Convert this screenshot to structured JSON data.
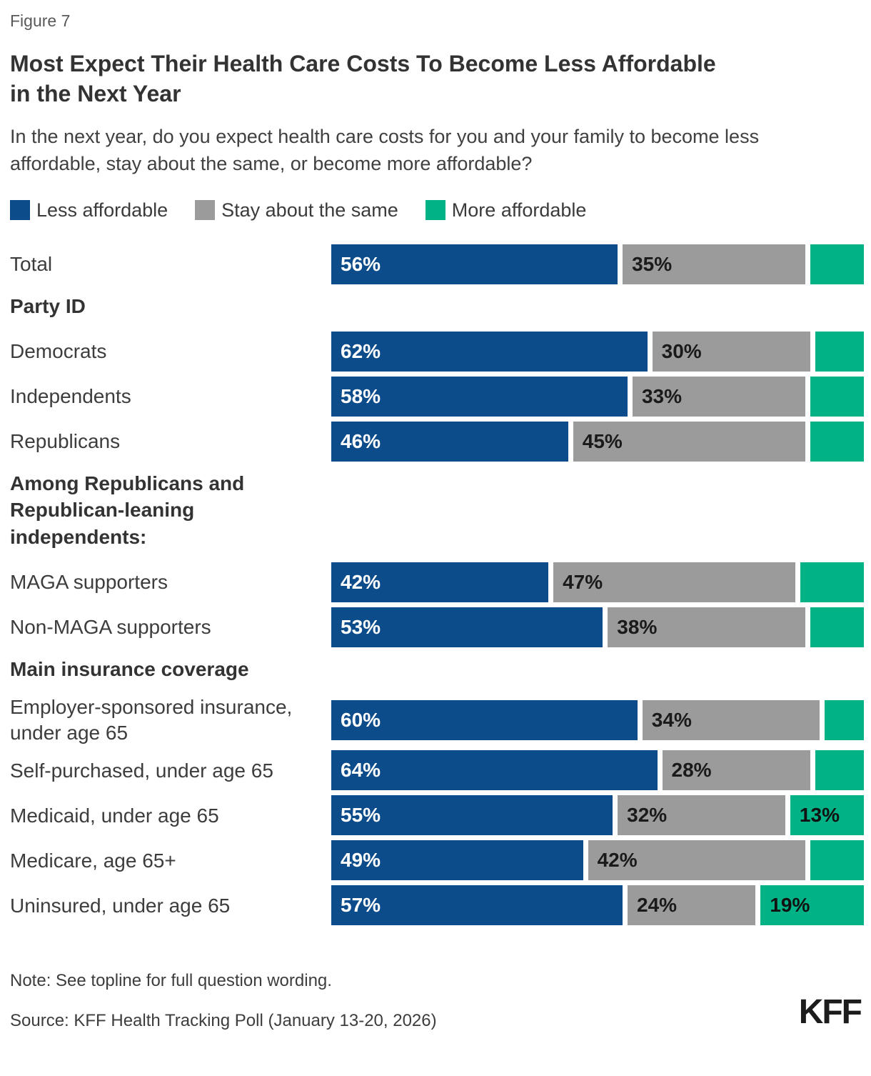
{
  "figure_label": "Figure 7",
  "title": "Most Expect Their Health Care Costs To Become Less Affordable in the Next Year",
  "subtitle": "In the next year, do you expect health care costs for you and your family to become less affordable, stay about the same, or become more affordable?",
  "colors": {
    "less": "#0d4c8a",
    "same": "#9b9b9b",
    "more": "#00b286"
  },
  "legend": {
    "items": [
      {
        "label": "Less affordable",
        "key": "less"
      },
      {
        "label": "Stay about the same",
        "key": "same"
      },
      {
        "label": "More affordable",
        "key": "more"
      }
    ]
  },
  "chart_data": {
    "type": "bar",
    "stacked": true,
    "orientation": "horizontal",
    "unit": "percent",
    "xlim": [
      0,
      100
    ],
    "legend_position": "top",
    "series_names": [
      "Less affordable",
      "Stay about the same",
      "More affordable"
    ],
    "rows": [
      {
        "kind": "bar",
        "category": "Total",
        "values": [
          56,
          35,
          9
        ],
        "value_labels": [
          "56%",
          "35%",
          ""
        ]
      },
      {
        "kind": "header",
        "text": "Party ID"
      },
      {
        "kind": "bar",
        "category": "Democrats",
        "values": [
          62,
          30,
          8
        ],
        "value_labels": [
          "62%",
          "30%",
          ""
        ]
      },
      {
        "kind": "bar",
        "category": "Independents",
        "values": [
          58,
          33,
          9
        ],
        "value_labels": [
          "58%",
          "33%",
          ""
        ]
      },
      {
        "kind": "bar",
        "category": "Republicans",
        "values": [
          46,
          45,
          9
        ],
        "value_labels": [
          "46%",
          "45%",
          ""
        ]
      },
      {
        "kind": "header",
        "text": "Among Republicans and Republican-leaning independents:"
      },
      {
        "kind": "bar",
        "category": "MAGA supporters",
        "values": [
          42,
          47,
          11
        ],
        "value_labels": [
          "42%",
          "47%",
          ""
        ]
      },
      {
        "kind": "bar",
        "category": "Non-MAGA supporters",
        "values": [
          53,
          38,
          9
        ],
        "value_labels": [
          "53%",
          "38%",
          ""
        ]
      },
      {
        "kind": "header",
        "text": "Main insurance coverage"
      },
      {
        "kind": "bar",
        "category": "Employer-sponsored insurance, under age 65",
        "values": [
          60,
          34,
          6
        ],
        "value_labels": [
          "60%",
          "34%",
          ""
        ]
      },
      {
        "kind": "bar",
        "category": "Self-purchased, under age 65",
        "values": [
          64,
          28,
          8
        ],
        "value_labels": [
          "64%",
          "28%",
          ""
        ]
      },
      {
        "kind": "bar",
        "category": "Medicaid, under age 65",
        "values": [
          55,
          32,
          13
        ],
        "value_labels": [
          "55%",
          "32%",
          "13%"
        ]
      },
      {
        "kind": "bar",
        "category": "Medicare, age 65+",
        "values": [
          49,
          42,
          9
        ],
        "value_labels": [
          "49%",
          "42%",
          ""
        ]
      },
      {
        "kind": "bar",
        "category": "Uninsured, under age 65",
        "values": [
          57,
          24,
          19
        ],
        "value_labels": [
          "57%",
          "24%",
          "19%"
        ]
      }
    ]
  },
  "footer": {
    "note": "Note: See topline for full question wording.",
    "source": "Source: KFF Health Tracking Poll (January 13-20, 2026)",
    "logo": "KFF"
  }
}
